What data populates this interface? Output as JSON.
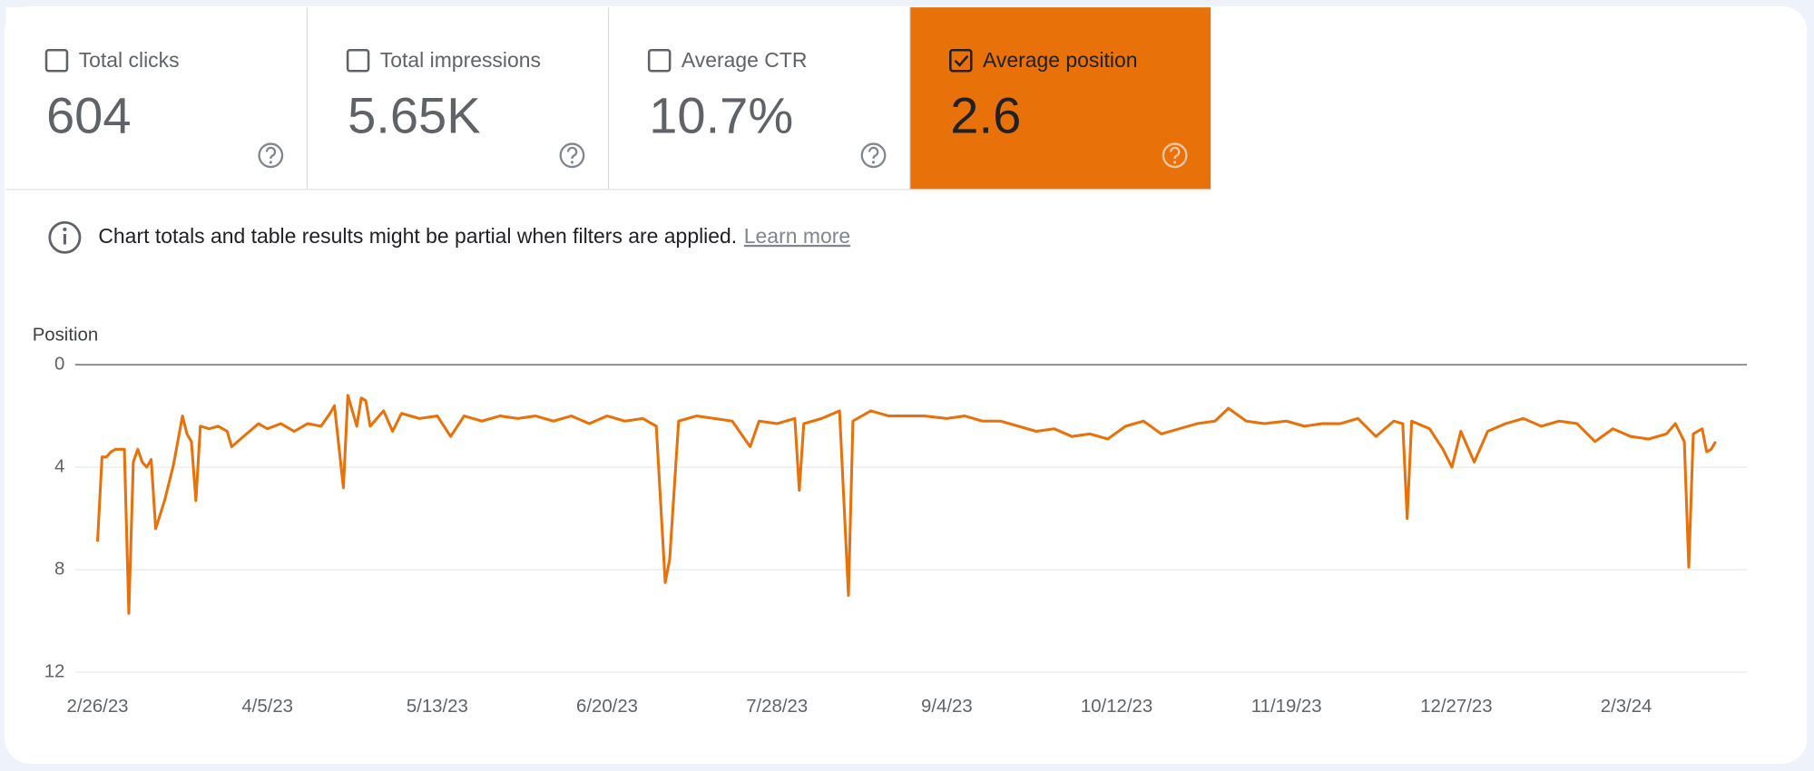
{
  "metrics": [
    {
      "label": "Total clicks",
      "value": "604",
      "selected": false
    },
    {
      "label": "Total impressions",
      "value": "5.65K",
      "selected": false
    },
    {
      "label": "Average CTR",
      "value": "10.7%",
      "selected": false
    },
    {
      "label": "Average position",
      "value": "2.6",
      "selected": true
    }
  ],
  "notice": {
    "text": "Chart totals and table results might be partial when filters are applied.",
    "link": "Learn more"
  },
  "chart_data": {
    "type": "line",
    "y_label": "Position",
    "color": "#e8710a",
    "inverted": true,
    "grid": true,
    "ylim": [
      0,
      12
    ],
    "yticks": [
      0,
      4,
      8,
      12
    ],
    "xlim": [
      "2/21/23",
      "3/1/24"
    ],
    "xticks": [
      "2/26/23",
      "4/5/23",
      "5/13/23",
      "6/20/23",
      "7/28/23",
      "9/4/23",
      "10/12/23",
      "11/19/23",
      "12/27/23",
      "2/3/24"
    ],
    "x": [
      "2/26/23",
      "2/27/23",
      "2/28/23",
      "3/1/23",
      "3/2/23",
      "3/4/23",
      "3/5/23",
      "3/6/23",
      "3/7/23",
      "3/8/23",
      "3/9/23",
      "3/10/23",
      "3/11/23",
      "3/13/23",
      "3/15/23",
      "3/17/23",
      "3/18/23",
      "3/19/23",
      "3/20/23",
      "3/21/23",
      "3/23/23",
      "3/25/23",
      "3/27/23",
      "3/28/23",
      "4/1/23",
      "4/3/23",
      "4/5/23",
      "4/8/23",
      "4/11/23",
      "4/14/23",
      "4/17/23",
      "4/19/23",
      "4/20/23",
      "4/22/23",
      "4/23/23",
      "4/25/23",
      "4/26/23",
      "4/27/23",
      "4/28/23",
      "5/1/23",
      "5/3/23",
      "5/5/23",
      "5/9/23",
      "5/13/23",
      "5/16/23",
      "5/19/23",
      "5/23/23",
      "5/27/23",
      "5/31/23",
      "6/4/23",
      "6/8/23",
      "6/12/23",
      "6/16/23",
      "6/20/23",
      "6/24/23",
      "6/28/23",
      "7/1/23",
      "7/3/23",
      "7/4/23",
      "7/6/23",
      "7/10/23",
      "7/14/23",
      "7/18/23",
      "7/22/23",
      "7/24/23",
      "7/28/23",
      "8/1/23",
      "8/2/23",
      "8/3/23",
      "8/7/23",
      "8/11/23",
      "8/13/23",
      "8/14/23",
      "8/18/23",
      "8/22/23",
      "8/26/23",
      "8/30/23",
      "9/4/23",
      "9/8/23",
      "9/12/23",
      "9/16/23",
      "9/20/23",
      "9/24/23",
      "9/28/23",
      "10/2/23",
      "10/6/23",
      "10/10/23",
      "10/14/23",
      "10/18/23",
      "10/22/23",
      "10/26/23",
      "10/30/23",
      "11/3/23",
      "11/6/23",
      "11/10/23",
      "11/14/23",
      "11/19/23",
      "11/23/23",
      "11/27/23",
      "12/1/23",
      "12/5/23",
      "12/9/23",
      "12/13/23",
      "12/15/23",
      "12/16/23",
      "12/17/23",
      "12/21/23",
      "12/24/23",
      "12/26/23",
      "12/28/23",
      "12/31/23",
      "1/3/24",
      "1/7/24",
      "1/11/24",
      "1/15/24",
      "1/19/24",
      "1/23/24",
      "1/27/24",
      "1/31/24",
      "2/4/24",
      "2/8/24",
      "2/12/24",
      "2/14/24",
      "2/16/24",
      "2/17/24",
      "2/18/24",
      "2/20/24",
      "2/21/24",
      "2/22/24",
      "2/23/24"
    ],
    "values": [
      6.9,
      3.6,
      3.6,
      3.4,
      3.3,
      3.3,
      9.7,
      3.8,
      3.3,
      3.8,
      4.0,
      3.7,
      6.4,
      5.3,
      3.9,
      2.0,
      2.7,
      3.0,
      5.3,
      2.4,
      2.5,
      2.4,
      2.6,
      3.2,
      2.6,
      2.3,
      2.5,
      2.3,
      2.6,
      2.3,
      2.4,
      1.9,
      1.6,
      4.8,
      1.2,
      2.4,
      1.3,
      1.4,
      2.4,
      1.8,
      2.6,
      1.9,
      2.1,
      2.0,
      2.8,
      2.0,
      2.2,
      2.0,
      2.1,
      2.0,
      2.2,
      2.0,
      2.3,
      2.0,
      2.2,
      2.1,
      2.4,
      8.5,
      7.6,
      2.2,
      2.0,
      2.1,
      2.2,
      3.2,
      2.2,
      2.3,
      2.1,
      4.9,
      2.3,
      2.1,
      1.8,
      9.0,
      2.2,
      1.8,
      2.0,
      2.0,
      2.0,
      2.1,
      2.0,
      2.2,
      2.2,
      2.4,
      2.6,
      2.5,
      2.8,
      2.7,
      2.9,
      2.4,
      2.2,
      2.7,
      2.5,
      2.3,
      2.2,
      1.7,
      2.2,
      2.3,
      2.2,
      2.4,
      2.3,
      2.3,
      2.1,
      2.8,
      2.2,
      2.3,
      6.0,
      2.2,
      2.5,
      3.3,
      4.0,
      2.6,
      3.8,
      2.6,
      2.3,
      2.1,
      2.4,
      2.2,
      2.3,
      3.0,
      2.5,
      2.8,
      2.9,
      2.7,
      2.3,
      3.0,
      7.9,
      2.7,
      2.5,
      3.4,
      3.3,
      3.0
    ]
  }
}
